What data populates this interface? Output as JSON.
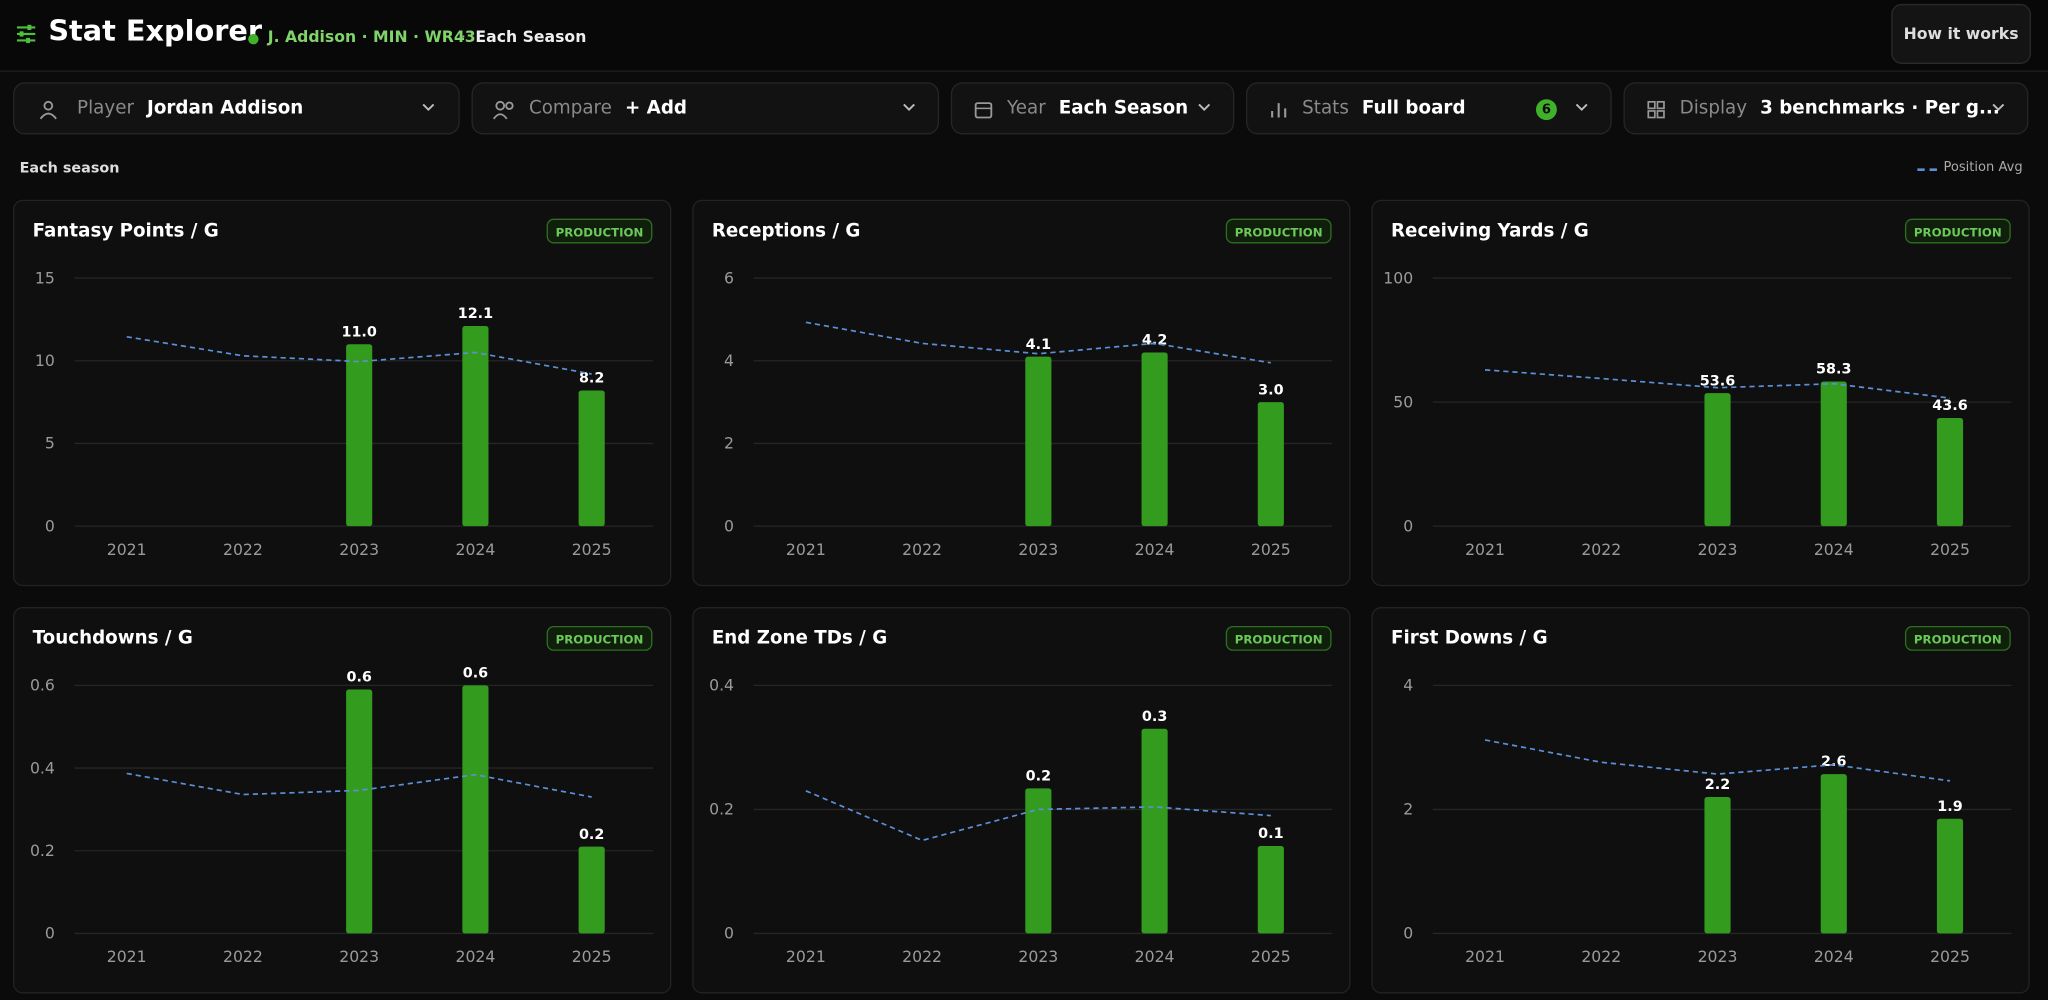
{
  "header": {
    "title": "Stat Explorer",
    "player_tag": "J. Addison · MIN · WR43",
    "separator": "·",
    "mode": "Each Season",
    "button": "How it works"
  },
  "filters": [
    {
      "label": "Player",
      "value": "Jordan Addison"
    },
    {
      "label": "Compare",
      "value": "+ Add"
    },
    {
      "label": "Year",
      "value": "Each Season"
    },
    {
      "label": "Stats",
      "value": "Full board",
      "badge": "6"
    },
    {
      "label": "Display",
      "value": "3 benchmarks · Per g..."
    }
  ],
  "section_label": "Each season",
  "legend": "Position Avg",
  "chart_data": [
    {
      "type": "bar",
      "title": "Fantasy Points / G",
      "badge": "PRODUCTION",
      "categories": [
        "2021",
        "2022",
        "2023",
        "2024",
        "2025"
      ],
      "ylim": [
        0,
        15
      ],
      "yticks": [
        0,
        5,
        10,
        15
      ],
      "grid": true,
      "series": [
        {
          "color": "#339c1f",
          "values": [
            null,
            null,
            11.0,
            12.1,
            8.2
          ],
          "value_labels": [
            null,
            null,
            "11.0",
            "12.1",
            "8.2"
          ]
        },
        {
          "type": "line",
          "color": "#5b8fd6",
          "values": [
            11.45,
            10.3,
            9.95,
            10.5,
            9.2
          ]
        }
      ]
    },
    {
      "type": "bar",
      "title": "Receptions / G",
      "badge": "PRODUCTION",
      "categories": [
        "2021",
        "2022",
        "2023",
        "2024",
        "2025"
      ],
      "ylim": [
        0,
        6
      ],
      "yticks": [
        0,
        2,
        4,
        6
      ],
      "grid": true,
      "series": [
        {
          "color": "#339c1f",
          "values": [
            null,
            null,
            4.1,
            4.2,
            3.0
          ],
          "value_labels": [
            null,
            null,
            "4.1",
            "4.2",
            "3.0"
          ]
        },
        {
          "type": "line",
          "color": "#5b8fd6",
          "values": [
            4.93,
            4.42,
            4.17,
            4.42,
            3.95
          ]
        }
      ]
    },
    {
      "type": "bar",
      "title": "Receiving Yards / G",
      "badge": "PRODUCTION",
      "categories": [
        "2021",
        "2022",
        "2023",
        "2024",
        "2025"
      ],
      "ylim": [
        0,
        100
      ],
      "yticks": [
        0,
        50,
        100
      ],
      "grid": true,
      "series": [
        {
          "color": "#339c1f",
          "values": [
            null,
            null,
            53.6,
            58.3,
            43.6
          ],
          "value_labels": [
            null,
            null,
            "53.6",
            "58.3",
            "43.6"
          ]
        },
        {
          "type": "line",
          "color": "#5b8fd6",
          "values": [
            63,
            59.5,
            55.8,
            57.4,
            51.6
          ]
        }
      ]
    },
    {
      "type": "bar",
      "title": "Touchdowns / G",
      "badge": "PRODUCTION",
      "categories": [
        "2021",
        "2022",
        "2023",
        "2024",
        "2025"
      ],
      "ylim": [
        0,
        0.6
      ],
      "yticks": [
        0,
        0.2,
        0.4,
        0.6
      ],
      "grid": true,
      "series": [
        {
          "color": "#339c1f",
          "values": [
            null,
            null,
            0.59,
            0.6,
            0.21
          ],
          "value_labels": [
            null,
            null,
            "0.6",
            "0.6",
            "0.2"
          ]
        },
        {
          "type": "line",
          "color": "#5b8fd6",
          "values": [
            0.387,
            0.336,
            0.346,
            0.384,
            0.33
          ]
        }
      ]
    },
    {
      "type": "bar",
      "title": "End Zone TDs / G",
      "badge": "PRODUCTION",
      "categories": [
        "2021",
        "2022",
        "2023",
        "2024",
        "2025"
      ],
      "ylim": [
        0,
        0.4
      ],
      "yticks": [
        0,
        0.2,
        0.4
      ],
      "grid": true,
      "series": [
        {
          "color": "#339c1f",
          "values": [
            null,
            null,
            0.234,
            0.33,
            0.141
          ],
          "value_labels": [
            null,
            null,
            "0.2",
            "0.3",
            "0.1"
          ]
        },
        {
          "type": "line",
          "color": "#5b8fd6",
          "values": [
            0.23,
            0.15,
            0.2,
            0.204,
            0.19
          ]
        }
      ]
    },
    {
      "type": "bar",
      "title": "First Downs / G",
      "badge": "PRODUCTION",
      "categories": [
        "2021",
        "2022",
        "2023",
        "2024",
        "2025"
      ],
      "ylim": [
        0,
        4
      ],
      "yticks": [
        0,
        2,
        4
      ],
      "grid": true,
      "series": [
        {
          "color": "#339c1f",
          "values": [
            null,
            null,
            2.2,
            2.57,
            1.85
          ],
          "value_labels": [
            null,
            null,
            "2.2",
            "2.6",
            "1.9"
          ]
        },
        {
          "type": "line",
          "color": "#5b8fd6",
          "values": [
            3.12,
            2.76,
            2.57,
            2.72,
            2.46
          ]
        }
      ]
    }
  ]
}
